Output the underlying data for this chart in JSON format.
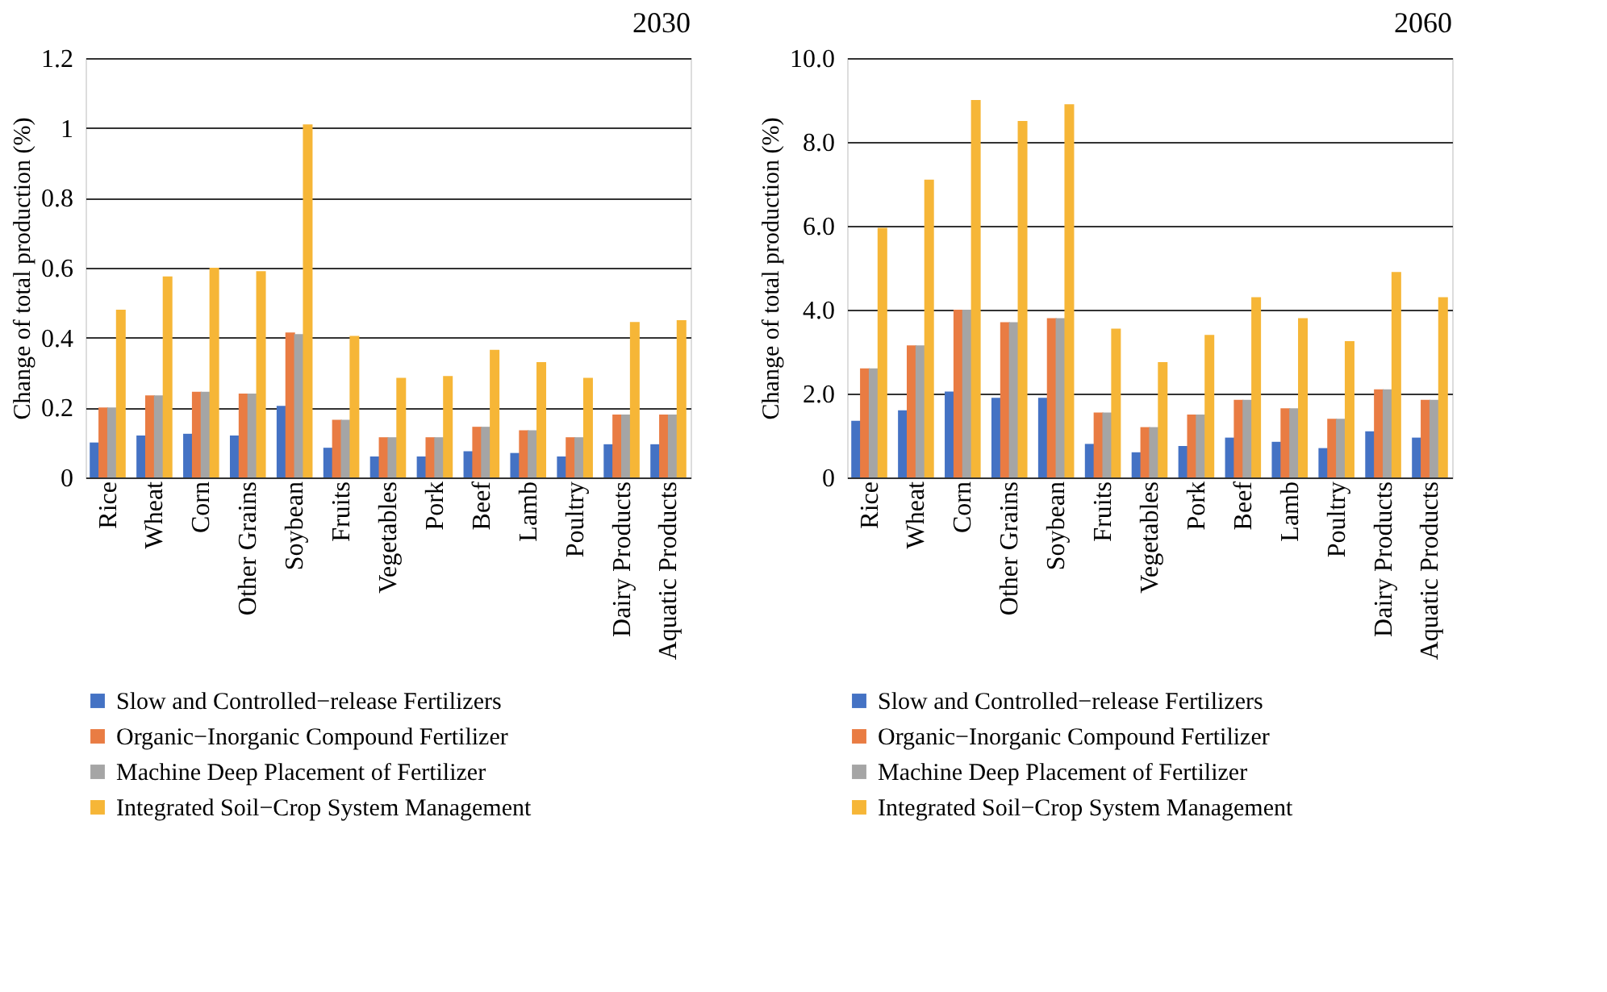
{
  "chart_data": [
    {
      "type": "bar",
      "title": "2030",
      "ylabel": "Change of total production (%)",
      "categories": [
        "Rice",
        "Wheat",
        "Corn",
        "Other Grains",
        "Soybean",
        "Fruits",
        "Vegetables",
        "Pork",
        "Beef",
        "Lamb",
        "Poultry",
        "Dairy Products",
        "Aquatic Products"
      ],
      "series": [
        {
          "name": "Slow and Controlled−release Fertilizers",
          "color": "#4472c4",
          "values": [
            0.1,
            0.12,
            0.125,
            0.12,
            0.205,
            0.085,
            0.06,
            0.06,
            0.075,
            0.07,
            0.06,
            0.095,
            0.095
          ]
        },
        {
          "name": "Organic−Inorganic Compound Fertilizer",
          "color": "#e97c43",
          "values": [
            0.2,
            0.235,
            0.245,
            0.24,
            0.415,
            0.165,
            0.115,
            0.115,
            0.145,
            0.135,
            0.115,
            0.18,
            0.18
          ]
        },
        {
          "name": "Machine Deep Placement of Fertilizer",
          "color": "#a5a5a5",
          "values": [
            0.2,
            0.235,
            0.245,
            0.24,
            0.41,
            0.165,
            0.115,
            0.115,
            0.145,
            0.135,
            0.115,
            0.18,
            0.18
          ]
        },
        {
          "name": "Integrated Soil−Crop System Management",
          "color": "#f6b637",
          "values": [
            0.48,
            0.575,
            0.6,
            0.59,
            1.01,
            0.405,
            0.285,
            0.29,
            0.365,
            0.33,
            0.285,
            0.445,
            0.45
          ]
        }
      ],
      "ylim": [
        0,
        1.2
      ],
      "yticks": [
        0,
        0.2,
        0.4,
        0.6,
        0.8,
        1,
        1.2
      ],
      "grid": "y",
      "legend": "bottom"
    },
    {
      "type": "bar",
      "title": "2060",
      "ylabel": "Change of total production (%)",
      "categories": [
        "Rice",
        "Wheat",
        "Corn",
        "Other Grains",
        "Soybean",
        "Fruits",
        "Vegetables",
        "Pork",
        "Beef",
        "Lamb",
        "Poultry",
        "Dairy Products",
        "Aquatic Products"
      ],
      "series": [
        {
          "name": "Slow and Controlled−release Fertilizers",
          "color": "#4472c4",
          "values": [
            1.35,
            1.6,
            2.05,
            1.9,
            1.9,
            0.8,
            0.6,
            0.75,
            0.95,
            0.85,
            0.7,
            1.1,
            0.95
          ]
        },
        {
          "name": "Organic−Inorganic Compound Fertilizer",
          "color": "#e97c43",
          "values": [
            2.6,
            3.15,
            4.0,
            3.7,
            3.8,
            1.55,
            1.2,
            1.5,
            1.85,
            1.65,
            1.4,
            2.1,
            1.85
          ]
        },
        {
          "name": "Machine Deep Placement of Fertilizer",
          "color": "#a5a5a5",
          "values": [
            2.6,
            3.15,
            4.0,
            3.7,
            3.8,
            1.55,
            1.2,
            1.5,
            1.85,
            1.65,
            1.4,
            2.1,
            1.85
          ]
        },
        {
          "name": "Integrated Soil−Crop System Management",
          "color": "#f6b637",
          "values": [
            5.95,
            7.1,
            9.0,
            8.5,
            8.9,
            3.55,
            2.75,
            3.4,
            4.3,
            3.8,
            3.25,
            4.9,
            4.3
          ]
        }
      ],
      "ylim": [
        0,
        10
      ],
      "yticks": [
        0,
        {
          "value": 2,
          "label": "2.0"
        },
        {
          "value": 4,
          "label": "4.0"
        },
        {
          "value": 6,
          "label": "6.0"
        },
        {
          "value": 8,
          "label": "8.0"
        },
        {
          "value": 10,
          "label": "10.0"
        }
      ],
      "grid": "y",
      "legend": "bottom"
    }
  ]
}
